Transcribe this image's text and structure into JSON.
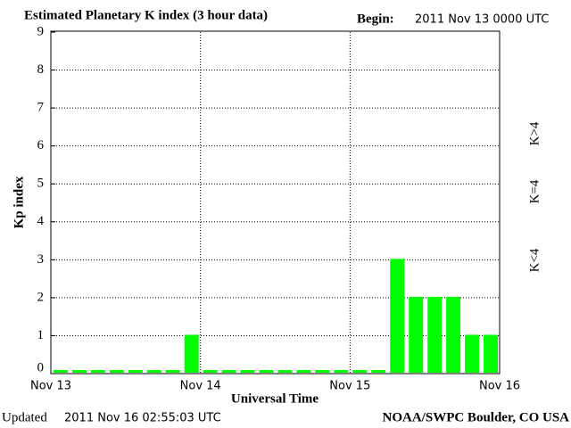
{
  "chart_data": {
    "type": "bar",
    "title": "Estimated Planetary K index (3 hour data)",
    "begin_label": "Begin:",
    "begin_value": "2011 Nov 13 0000 UTC",
    "y_label": "Kp index",
    "x_label": "Universal Time",
    "updated_label": "Updated",
    "updated_value": "2011 Nov 16 02:55:03 UTC",
    "source": "NOAA/SWPC Boulder, CO USA",
    "x": [
      0,
      3,
      6,
      9,
      12,
      15,
      18,
      21,
      24,
      27,
      30,
      33,
      36,
      39,
      42,
      45,
      48,
      51,
      54,
      57,
      60,
      63,
      66,
      69
    ],
    "values": [
      0,
      0,
      0,
      0,
      0,
      0,
      0,
      1,
      0,
      0,
      0,
      0,
      0,
      0,
      0,
      0,
      0,
      0,
      3,
      2,
      2,
      2,
      1,
      1
    ],
    "bar_width": 3,
    "color": "#00ff00",
    "xlim": [
      0,
      72
    ],
    "xticks": [
      {
        "value": 0,
        "label": "Nov 13"
      },
      {
        "value": 24,
        "label": "Nov 14"
      },
      {
        "value": 48,
        "label": "Nov 15"
      },
      {
        "value": 72,
        "label": "Nov 16"
      }
    ],
    "ylim": [
      0,
      9
    ],
    "yticks": [
      0,
      1,
      2,
      3,
      4,
      5,
      6,
      7,
      8,
      9
    ],
    "grid": true,
    "legend": [
      {
        "label": "K>4",
        "color": "#ff3300"
      },
      {
        "label": "K=4",
        "color": "#ffcc00"
      },
      {
        "label": "K<4",
        "color": "#33ee33"
      }
    ]
  }
}
